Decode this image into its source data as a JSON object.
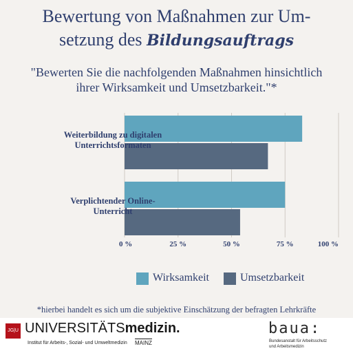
{
  "title": {
    "line1": "Bewertung von Maßnahmen zur Um-",
    "line2_prefix": "setzung des",
    "line2_script": "Bildungsauftrags"
  },
  "subtitle": {
    "line1": "\"Bewerten Sie die nachfolgenden Maßnahmen hinsichtlich",
    "line2": "ihrer Wirksamkeit und Umsetzbarkeit.\"*"
  },
  "chart_data": {
    "type": "bar",
    "orientation": "horizontal",
    "categories": [
      "Weiterbildung zu digitalen Unterrichtsformaten",
      "Verplichtender Online-Unterricht"
    ],
    "category_lines": [
      [
        "Weiterbildung zu digitalen",
        "Unterrichtsformaten"
      ],
      [
        "Verplichtender Online-",
        "Unterricht"
      ]
    ],
    "series": [
      {
        "name": "Wirksamkeit",
        "values": [
          83,
          75
        ],
        "color": "#5fa5be"
      },
      {
        "name": "Umsetzbarkeit",
        "values": [
          67,
          54
        ],
        "color": "#566980"
      }
    ],
    "xlim": [
      0,
      100
    ],
    "ticks": [
      "0 %",
      "25 %",
      "50 %",
      "75 %",
      "100 %"
    ],
    "tick_values": [
      0,
      25,
      50,
      75,
      100
    ],
    "grid": true,
    "legend_position": "bottom"
  },
  "footnote": "*hierbei handelt es sich um die subjektive Einschätzung der befragten Lehrkräfte",
  "footer": {
    "jgu_mark": "JG|U",
    "uni_name_regular": "UNIVERSITÄTS",
    "uni_name_bold": "medizin.",
    "institute": "Institut für Arbeits-, Sozial- und Umweltmedizin",
    "city": "MAINZ",
    "baua_logo": "baua:",
    "baua_line1": "Bundesanstalt für Arbeitsschutz",
    "baua_line2": "und Arbeitsmedizin"
  },
  "colors": {
    "text": "#2f3f6e",
    "background": "#f4f2ef",
    "grid": "#cfcac3"
  }
}
